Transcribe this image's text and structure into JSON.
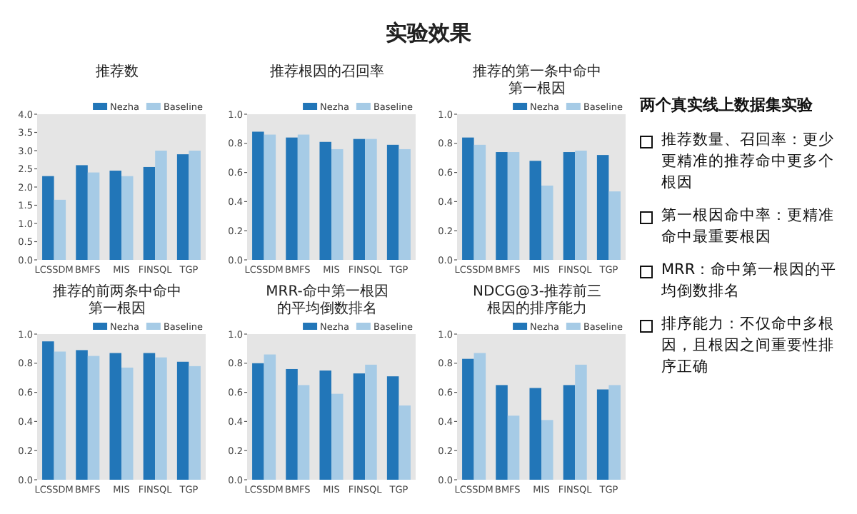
{
  "chart_data": [
    {
      "type": "other",
      "title": "实验效果"
    },
    {
      "type": "bar",
      "title": "推荐数",
      "categories": [
        "LCSSDM",
        "BMFS",
        "MIS",
        "FINSQL",
        "TGP"
      ],
      "legend": "top right",
      "grid": false,
      "ylim": [
        0,
        4
      ],
      "yticks": [
        {
          "value": 0,
          "label": "0.0"
        },
        {
          "value": 0.5,
          "label": "0.5"
        },
        {
          "value": 1,
          "label": "1.0"
        },
        {
          "value": 1.5,
          "label": "1.5"
        },
        {
          "value": 2,
          "label": "2.0"
        },
        {
          "value": 2.5,
          "label": "2.5"
        },
        {
          "value": 3,
          "label": "3.0"
        },
        {
          "value": 3.5,
          "label": "3.5"
        },
        {
          "value": 4,
          "label": "4.0"
        }
      ],
      "series": [
        {
          "name": "Nezha",
          "color": "#2276b8",
          "values": [
            2.3,
            2.6,
            2.45,
            2.55,
            2.9
          ]
        },
        {
          "name": "Baseline",
          "color": "#a6cbe6",
          "values": [
            1.65,
            2.4,
            2.3,
            3.0,
            3.0
          ]
        }
      ]
    },
    {
      "type": "bar",
      "title": "推荐根因的召回率",
      "categories": [
        "LCSSDM",
        "BMFS",
        "MIS",
        "FINSQL",
        "TGP"
      ],
      "legend": "top right",
      "grid": false,
      "ylim": [
        0,
        1
      ],
      "yticks": [
        {
          "value": 0,
          "label": "0.0"
        },
        {
          "value": 0.2,
          "label": "0.2"
        },
        {
          "value": 0.4,
          "label": "0.4"
        },
        {
          "value": 0.6,
          "label": "0.6"
        },
        {
          "value": 0.8,
          "label": "0.8"
        },
        {
          "value": 1,
          "label": "1.0"
        }
      ],
      "series": [
        {
          "name": "Nezha",
          "color": "#2276b8",
          "values": [
            0.88,
            0.84,
            0.81,
            0.83,
            0.79
          ]
        },
        {
          "name": "Baseline",
          "color": "#a6cbe6",
          "values": [
            0.86,
            0.86,
            0.76,
            0.83,
            0.76
          ]
        }
      ]
    },
    {
      "type": "bar",
      "title": "推荐的第一条中命中第一根因",
      "categories": [
        "LCSSDM",
        "BMFS",
        "MIS",
        "FINSQL",
        "TGP"
      ],
      "legend": "top right",
      "grid": false,
      "ylim": [
        0,
        1
      ],
      "yticks": [
        {
          "value": 0,
          "label": "0.0"
        },
        {
          "value": 0.2,
          "label": "0.2"
        },
        {
          "value": 0.4,
          "label": "0.4"
        },
        {
          "value": 0.6,
          "label": "0.6"
        },
        {
          "value": 0.8,
          "label": "0.8"
        },
        {
          "value": 1,
          "label": "1.0"
        }
      ],
      "series": [
        {
          "name": "Nezha",
          "color": "#2276b8",
          "values": [
            0.84,
            0.74,
            0.68,
            0.74,
            0.72
          ]
        },
        {
          "name": "Baseline",
          "color": "#a6cbe6",
          "values": [
            0.79,
            0.74,
            0.51,
            0.75,
            0.47
          ]
        }
      ]
    },
    {
      "type": "bar",
      "title": "推荐的前两条中命中第一根因",
      "categories": [
        "LCSSDM",
        "BMFS",
        "MIS",
        "FINSQL",
        "TGP"
      ],
      "legend": "top right",
      "grid": false,
      "ylim": [
        0,
        1
      ],
      "yticks": [
        {
          "value": 0,
          "label": "0.0"
        },
        {
          "value": 0.2,
          "label": "0.2"
        },
        {
          "value": 0.4,
          "label": "0.4"
        },
        {
          "value": 0.6,
          "label": "0.6"
        },
        {
          "value": 0.8,
          "label": "0.8"
        },
        {
          "value": 1,
          "label": "1.0"
        }
      ],
      "series": [
        {
          "name": "Nezha",
          "color": "#2276b8",
          "values": [
            0.95,
            0.89,
            0.87,
            0.87,
            0.81
          ]
        },
        {
          "name": "Baseline",
          "color": "#a6cbe6",
          "values": [
            0.88,
            0.85,
            0.77,
            0.84,
            0.78
          ]
        }
      ]
    },
    {
      "type": "bar",
      "title": "MRR-命中第一根因的平均倒数排名",
      "categories": [
        "LCSSDM",
        "BMFS",
        "MIS",
        "FINSQL",
        "TGP"
      ],
      "legend": "top right",
      "grid": false,
      "ylim": [
        0,
        1
      ],
      "yticks": [
        {
          "value": 0,
          "label": "0.0"
        },
        {
          "value": 0.2,
          "label": "0.2"
        },
        {
          "value": 0.4,
          "label": "0.4"
        },
        {
          "value": 0.6,
          "label": "0.6"
        },
        {
          "value": 0.8,
          "label": "0.8"
        },
        {
          "value": 1,
          "label": "1.0"
        }
      ],
      "series": [
        {
          "name": "Nezha",
          "color": "#2276b8",
          "values": [
            0.8,
            0.76,
            0.75,
            0.73,
            0.71
          ]
        },
        {
          "name": "Baseline",
          "color": "#a6cbe6",
          "values": [
            0.86,
            0.65,
            0.59,
            0.79,
            0.51
          ]
        }
      ]
    },
    {
      "type": "bar",
      "title": "NDCG@3-推荐前三根因的排序能力",
      "categories": [
        "LCSSDM",
        "BMFS",
        "MIS",
        "FINSQL",
        "TGP"
      ],
      "legend": "top right",
      "grid": false,
      "ylim": [
        0,
        1
      ],
      "yticks": [
        {
          "value": 0,
          "label": "0.0"
        },
        {
          "value": 0.2,
          "label": "0.2"
        },
        {
          "value": 0.4,
          "label": "0.4"
        },
        {
          "value": 0.6,
          "label": "0.6"
        },
        {
          "value": 0.8,
          "label": "0.8"
        },
        {
          "value": 1,
          "label": "1.0"
        }
      ],
      "series": [
        {
          "name": "Nezha",
          "color": "#2276b8",
          "values": [
            0.83,
            0.65,
            0.63,
            0.65,
            0.62
          ]
        },
        {
          "name": "Baseline",
          "color": "#a6cbe6",
          "values": [
            0.87,
            0.44,
            0.41,
            0.79,
            0.65
          ]
        }
      ]
    },
    {
      "type": "other",
      "title": "两个真实线上数据集实验",
      "annotations": [
        "推荐数量、召回率：更少更精准的推荐命中更多个根因",
        "第一根因命中率：更精准命中最重要根因",
        "MRR：命中第一根因的平均倒数排名",
        "排序能力：不仅命中多根因，且根因之间重要性排序正确"
      ]
    }
  ]
}
